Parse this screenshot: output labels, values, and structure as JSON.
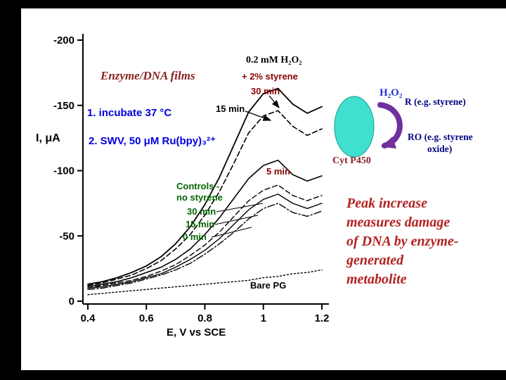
{
  "slide": {
    "title": "Enzyme/DNA films",
    "caption": "Peak increase\nmeasures damage\nof DNA by enzyme-\ngenerated\nmetabolite"
  },
  "chart_data": {
    "type": "line",
    "title": "",
    "xlabel": "E, V vs SCE",
    "ylabel": "I, μA",
    "xlim": [
      0.4,
      1.25
    ],
    "ylim": [
      -215,
      0
    ],
    "y_axis_inverted": true,
    "grid": false,
    "legend_position": "none (labels annotated on plot)",
    "x_ticks": [
      0.4,
      0.6,
      0.8,
      1.0,
      1.2
    ],
    "x_tick_labels": [
      "0.4",
      "0.6",
      "0.8",
      "1",
      "1.2"
    ],
    "y_ticks": [
      -200,
      -150,
      -100,
      -50,
      0
    ],
    "y_tick_labels": [
      "-200",
      "-150",
      "-100",
      "-50",
      "0"
    ],
    "x": [
      0.4,
      0.45,
      0.5,
      0.55,
      0.6,
      0.65,
      0.7,
      0.75,
      0.8,
      0.85,
      0.9,
      0.95,
      1.0,
      1.05,
      1.1,
      1.15,
      1.2
    ],
    "series": [
      {
        "name": "+ 2% styrene, 30 min incubation",
        "style": "solid",
        "width": 1.8,
        "values": [
          -13,
          -15,
          -18,
          -22,
          -27,
          -34,
          -44,
          -57,
          -74,
          -95,
          -120,
          -145,
          -159,
          -163,
          -151,
          -144,
          -149
        ]
      },
      {
        "name": "+ 2% styrene, 15 min incubation",
        "style": "dashed",
        "width": 1.6,
        "values": [
          -12,
          -14,
          -17,
          -20,
          -25,
          -31,
          -40,
          -51,
          -66,
          -84,
          -106,
          -129,
          -142,
          -146,
          -134,
          -127,
          -132
        ]
      },
      {
        "name": "+ 2% styrene, 5 min incubation",
        "style": "solid",
        "width": 1.6,
        "values": [
          -11,
          -13,
          -15,
          -18,
          -22,
          -26,
          -32,
          -40,
          -51,
          -64,
          -79,
          -94,
          -104,
          -108,
          -97,
          -92,
          -96
        ]
      },
      {
        "name": "control no styrene, 30 min",
        "style": "dashed",
        "width": 1.4,
        "values": [
          -10,
          -12,
          -14,
          -16,
          -19,
          -23,
          -28,
          -35,
          -43,
          -53,
          -65,
          -77,
          -85,
          -89,
          -81,
          -77,
          -81
        ]
      },
      {
        "name": "control no styrene, 15 min",
        "style": "solid",
        "width": 1.4,
        "values": [
          -10,
          -11,
          -13,
          -15,
          -18,
          -21,
          -26,
          -32,
          -39,
          -48,
          -59,
          -70,
          -78,
          -82,
          -75,
          -71,
          -75
        ]
      },
      {
        "name": "control no styrene, 0 min",
        "style": "dashdot",
        "width": 1.4,
        "values": [
          -9,
          -10,
          -12,
          -14,
          -17,
          -20,
          -24,
          -29,
          -36,
          -44,
          -53,
          -63,
          -71,
          -75,
          -68,
          -65,
          -69
        ]
      },
      {
        "name": "Bare PG",
        "style": "dotted",
        "width": 1.4,
        "values": [
          -5,
          -6,
          -7,
          -8,
          -9,
          -10,
          -11,
          -12,
          -13,
          -14,
          -15,
          -16,
          -18,
          -19,
          -21,
          -22,
          -24
        ]
      }
    ]
  },
  "plot_annotations": {
    "condition": "0.2 mM H₂O₂",
    "styrene": "+ 2% styrene",
    "styrene_30": "30 min",
    "styrene_15": "15 min",
    "styrene_5": "5 min",
    "step1": "1. incubate 37 °C",
    "step2": "2. SWV, 50 μM Ru(bpy)₃²⁺",
    "controls": "Controls -\nno styrene",
    "control_30": "30 min",
    "control_15": "15 min",
    "control_0": "0 min",
    "bare": "Bare PG"
  },
  "mechanism": {
    "h2o2": "H₂O₂",
    "substrate": "R (e.g. styrene)",
    "product_line1": "RO (e.g. styrene",
    "product_line2": "oxide)",
    "enzyme": "Cyt P450"
  },
  "colors": {
    "dark_red": "#8B0000",
    "blue": "#0000DD",
    "green": "#006400",
    "navy": "#000080",
    "title_red": "#8B2222",
    "caption_red": "#B22222",
    "enzyme_brown": "#8B2323",
    "h2o2_blue": "#2233CC",
    "teal": "#40E0D0",
    "purple": "#7030A0",
    "curve_black": "#000000"
  }
}
